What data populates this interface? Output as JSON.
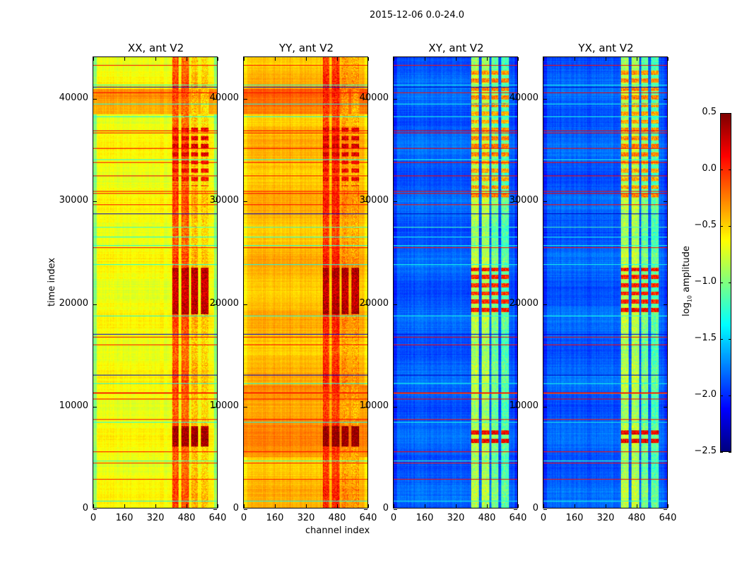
{
  "chart_data": {
    "type": "heatmap",
    "title": "2015-12-06 0.0-24.0",
    "xlabel": "channel index",
    "ylabel": "time index",
    "xlim": [
      0,
      640
    ],
    "ylim": [
      0,
      44064
    ],
    "xticks": [
      0,
      160,
      320,
      480,
      640
    ],
    "yticks": [
      0,
      10000,
      20000,
      30000,
      40000
    ],
    "colorbar": {
      "label_main": "log",
      "label_sub": "10",
      "label_rest": " amplitude",
      "colormap": "jet",
      "vmin": -2.5,
      "vmax": 0.5,
      "ticks": [
        0.5,
        0.0,
        -0.5,
        -1.0,
        -1.5,
        -2.0,
        -2.5
      ],
      "tick_labels": [
        "0.5",
        "0.0",
        "−0.5",
        "−1.0",
        "−1.5",
        "−2.0",
        "−2.5"
      ]
    },
    "panels": [
      {
        "title": "XX, ant V2",
        "base": -0.65,
        "edge": -0.95,
        "bands": [
          [
            405,
            440,
            -0.1
          ],
          [
            455,
            495,
            -0.15
          ],
          [
            505,
            540,
            -0.45
          ],
          [
            555,
            595,
            -0.5
          ]
        ],
        "events": [
          [
            6000,
            8000,
            0.35
          ],
          [
            19000,
            23500,
            0.3
          ],
          [
            31500,
            37500,
            0.15
          ]
        ],
        "patch": [
          [
            38500,
            41000,
            -0.35
          ]
        ]
      },
      {
        "title": "YY, ant V2",
        "base": -0.42,
        "edge": -0.55,
        "bands": [
          [
            405,
            440,
            0.0
          ],
          [
            455,
            495,
            0.0
          ],
          [
            505,
            540,
            -0.3
          ],
          [
            555,
            595,
            -0.35
          ]
        ],
        "events": [
          [
            6000,
            8000,
            0.4
          ],
          [
            19000,
            23500,
            0.35
          ],
          [
            31500,
            37500,
            0.2
          ]
        ],
        "patch": [
          [
            38500,
            41000,
            -0.2
          ],
          [
            5000,
            12000,
            -0.3
          ]
        ]
      },
      {
        "title": "XY, ant V2",
        "base": -1.85,
        "edge": -2.0,
        "bands": [
          [
            400,
            440,
            -0.85
          ],
          [
            455,
            495,
            -0.85
          ],
          [
            505,
            540,
            -1.05
          ],
          [
            555,
            595,
            -1.1
          ]
        ],
        "events": [
          [
            6000,
            8000,
            0.1
          ],
          [
            19000,
            23500,
            0.05
          ],
          [
            30000,
            43000,
            -0.3
          ]
        ],
        "patch": []
      },
      {
        "title": "YX, ant V2",
        "base": -1.85,
        "edge": -2.0,
        "bands": [
          [
            400,
            440,
            -0.85
          ],
          [
            455,
            495,
            -0.85
          ],
          [
            505,
            540,
            -1.05
          ],
          [
            555,
            595,
            -1.1
          ]
        ],
        "events": [
          [
            6000,
            8000,
            0.1
          ],
          [
            19000,
            23500,
            0.05
          ],
          [
            30000,
            43000,
            -0.3
          ]
        ],
        "patch": []
      }
    ],
    "flagged_rows": [
      [
        700,
        -1.3
      ],
      [
        2800,
        0.1
      ],
      [
        4400,
        0.05
      ],
      [
        4600,
        -1.2
      ],
      [
        5500,
        0.1
      ],
      [
        8400,
        -1.3
      ],
      [
        8700,
        0.1
      ],
      [
        10700,
        0.15
      ],
      [
        11200,
        -0.1
      ],
      [
        11300,
        0.15
      ],
      [
        12200,
        -1.3
      ],
      [
        13000,
        -2.3
      ],
      [
        16000,
        0.1
      ],
      [
        16700,
        0.15
      ],
      [
        17000,
        -2.2
      ],
      [
        18800,
        -1.3
      ],
      [
        23800,
        -1.3
      ],
      [
        25500,
        0.1
      ],
      [
        25700,
        -1.3
      ],
      [
        26500,
        -1.3
      ],
      [
        27500,
        -1.2
      ],
      [
        28800,
        -2.3
      ],
      [
        29700,
        0.1
      ],
      [
        30800,
        0.15
      ],
      [
        31000,
        0.1
      ],
      [
        32500,
        0.15
      ],
      [
        33800,
        0.1
      ],
      [
        34100,
        -1.3
      ],
      [
        35200,
        0.15
      ],
      [
        36700,
        0.1
      ],
      [
        36900,
        0.15
      ],
      [
        38300,
        -1.3
      ],
      [
        39500,
        -1.3
      ],
      [
        40600,
        0.15
      ],
      [
        41200,
        -2.3
      ],
      [
        41400,
        -1.3
      ],
      [
        43300,
        0.1
      ]
    ]
  }
}
